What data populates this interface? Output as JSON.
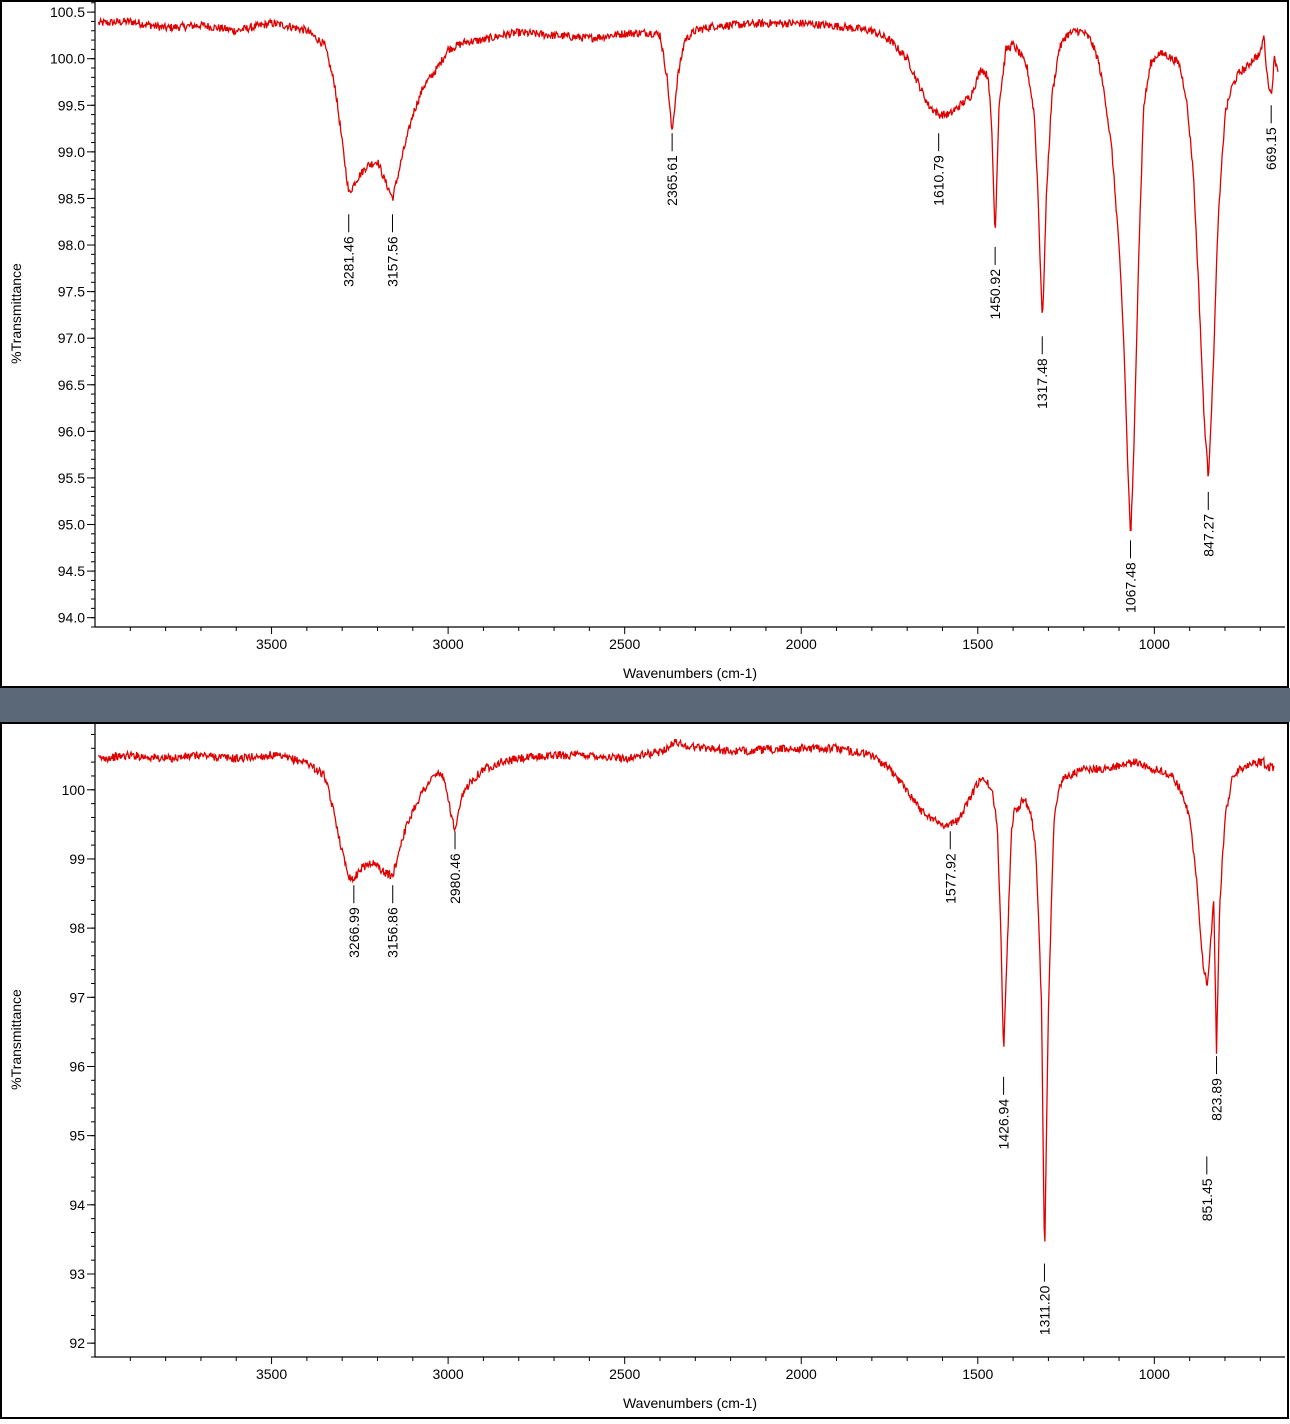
{
  "colors": {
    "trace": "#e00000",
    "separator": "#5a6878",
    "axis": "#000000"
  },
  "chart_data": [
    {
      "type": "line",
      "xlabel": "Wavenumbers (cm-1)",
      "ylabel": "%Transmittance",
      "xlim": [
        4000,
        630
      ],
      "ylim": [
        93.9,
        100.63
      ],
      "x_ticks": [
        3500,
        3000,
        2500,
        2000,
        1500,
        1000
      ],
      "y_ticks": [
        "94.0",
        "94.5",
        "95.0",
        "95.5",
        "96.0",
        "96.5",
        "97.0",
        "97.5",
        "98.0",
        "98.5",
        "99.0",
        "99.5",
        "100.0",
        "100.5"
      ],
      "x_minor_step": 100,
      "y_minor_step": 0.1,
      "series": [
        {
          "x": [
            3990,
            3900,
            3800,
            3700,
            3600,
            3500,
            3450,
            3400,
            3350,
            3320,
            3300,
            3281,
            3260,
            3230,
            3200,
            3180,
            3157,
            3130,
            3100,
            3070,
            3030,
            3000,
            2950,
            2900,
            2850,
            2800,
            2700,
            2600,
            2500,
            2430,
            2400,
            2380,
            2366,
            2350,
            2330,
            2300,
            2250,
            2200,
            2100,
            2000,
            1900,
            1800,
            1750,
            1700,
            1670,
            1640,
            1610,
            1580,
            1550,
            1520,
            1490,
            1470,
            1460,
            1451,
            1440,
            1420,
            1400,
            1380,
            1360,
            1340,
            1330,
            1317,
            1305,
            1290,
            1270,
            1250,
            1220,
            1200,
            1180,
            1160,
            1140,
            1120,
            1100,
            1085,
            1075,
            1067,
            1058,
            1045,
            1030,
            1010,
            990,
            970,
            950,
            930,
            910,
            890,
            875,
            860,
            847,
            835,
            820,
            800,
            780,
            760,
            740,
            720,
            700,
            690,
            680,
            669,
            660,
            650
          ],
          "y": [
            100.38,
            100.4,
            100.33,
            100.36,
            100.3,
            100.38,
            100.35,
            100.3,
            100.15,
            99.7,
            99.1,
            98.55,
            98.7,
            98.85,
            98.9,
            98.7,
            98.5,
            98.95,
            99.4,
            99.7,
            99.9,
            100.1,
            100.18,
            100.2,
            100.25,
            100.28,
            100.25,
            100.22,
            100.27,
            100.28,
            100.26,
            99.8,
            99.2,
            99.8,
            100.2,
            100.3,
            100.35,
            100.36,
            100.38,
            100.38,
            100.35,
            100.3,
            100.2,
            100.0,
            99.75,
            99.5,
            99.4,
            99.4,
            99.5,
            99.6,
            99.9,
            99.8,
            99.2,
            98.1,
            99.5,
            100.1,
            100.15,
            100.05,
            99.9,
            99.4,
            98.6,
            97.15,
            98.6,
            99.6,
            100.1,
            100.25,
            100.3,
            100.28,
            100.2,
            100.0,
            99.6,
            99.0,
            98.0,
            96.8,
            95.6,
            94.85,
            95.8,
            97.8,
            99.5,
            99.95,
            100.05,
            100.05,
            100.0,
            99.95,
            99.6,
            98.8,
            97.6,
            96.2,
            95.5,
            96.5,
            98.2,
            99.4,
            99.7,
            99.85,
            99.9,
            100.0,
            100.05,
            100.25,
            99.8,
            99.6,
            100.0,
            99.9
          ]
        }
      ],
      "peaks": [
        {
          "x": 3281.46,
          "y": 98.33,
          "label": "3281.46"
        },
        {
          "x": 3157.56,
          "y": 98.33,
          "label": "3157.56"
        },
        {
          "x": 2365.61,
          "y": 99.2,
          "label": "2365.61"
        },
        {
          "x": 1610.79,
          "y": 99.2,
          "label": "1610.79"
        },
        {
          "x": 1450.92,
          "y": 97.98,
          "label": "1450.92"
        },
        {
          "x": 1317.48,
          "y": 97.02,
          "label": "1317.48"
        },
        {
          "x": 1067.48,
          "y": 94.83,
          "label": "1067.48"
        },
        {
          "x": 847.27,
          "y": 95.35,
          "label": "847.27"
        },
        {
          "x": 669.15,
          "y": 99.5,
          "label": "669.15"
        }
      ]
    },
    {
      "type": "line",
      "xlabel": "Wavenumbers (cm-1)",
      "ylabel": "%Transmittance",
      "xlim": [
        4000,
        630
      ],
      "ylim": [
        91.8,
        100.98
      ],
      "x_ticks": [
        3500,
        3000,
        2500,
        2000,
        1500,
        1000
      ],
      "y_ticks": [
        "92",
        "93",
        "94",
        "95",
        "96",
        "97",
        "98",
        "99",
        "100"
      ],
      "x_minor_step": 100,
      "y_minor_step": 0.2,
      "series": [
        {
          "x": [
            3990,
            3900,
            3800,
            3700,
            3600,
            3500,
            3450,
            3400,
            3350,
            3320,
            3300,
            3280,
            3267,
            3250,
            3220,
            3200,
            3180,
            3157,
            3130,
            3100,
            3070,
            3040,
            3020,
            3000,
            2990,
            2980,
            2960,
            2940,
            2900,
            2850,
            2800,
            2700,
            2600,
            2500,
            2400,
            2350,
            2340,
            2300,
            2250,
            2200,
            2100,
            2000,
            1900,
            1800,
            1750,
            1700,
            1660,
            1620,
            1600,
            1578,
            1560,
            1540,
            1520,
            1500,
            1480,
            1460,
            1445,
            1435,
            1427,
            1418,
            1405,
            1395,
            1385,
            1375,
            1365,
            1350,
            1335,
            1320,
            1311,
            1300,
            1285,
            1270,
            1250,
            1220,
            1200,
            1150,
            1100,
            1050,
            1000,
            950,
            920,
            900,
            880,
            865,
            851,
            840,
            832,
            824,
            815,
            800,
            780,
            760,
            740,
            720,
            700,
            690,
            680,
            670,
            660
          ],
          "y": [
            100.45,
            100.5,
            100.45,
            100.5,
            100.45,
            100.5,
            100.45,
            100.4,
            100.2,
            99.6,
            99.1,
            98.75,
            98.7,
            98.85,
            98.95,
            98.9,
            98.8,
            98.75,
            99.3,
            99.7,
            100.0,
            100.2,
            100.25,
            99.9,
            99.6,
            99.4,
            99.9,
            100.1,
            100.3,
            100.4,
            100.45,
            100.5,
            100.5,
            100.45,
            100.55,
            100.7,
            100.65,
            100.62,
            100.6,
            100.55,
            100.58,
            100.6,
            100.6,
            100.5,
            100.3,
            100.0,
            99.7,
            99.55,
            99.5,
            99.5,
            99.55,
            99.7,
            99.9,
            100.1,
            100.15,
            100.0,
            99.5,
            98.0,
            96.2,
            97.5,
            99.4,
            99.8,
            99.7,
            99.85,
            99.85,
            99.7,
            99.1,
            97.0,
            93.2,
            96.8,
            99.5,
            100.05,
            100.2,
            100.25,
            100.3,
            100.3,
            100.35,
            100.4,
            100.3,
            100.2,
            99.95,
            99.6,
            98.7,
            97.6,
            97.15,
            97.8,
            98.4,
            96.2,
            98.3,
            99.6,
            100.15,
            100.3,
            100.35,
            100.4,
            100.4,
            100.4,
            100.3,
            100.35,
            100.3
          ]
        }
      ],
      "peaks": [
        {
          "x": 3266.99,
          "y": 98.62,
          "label": "3266.99"
        },
        {
          "x": 3156.86,
          "y": 98.62,
          "label": "3156.86"
        },
        {
          "x": 2980.46,
          "y": 99.4,
          "label": "2980.46"
        },
        {
          "x": 1577.92,
          "y": 99.4,
          "label": "1577.92"
        },
        {
          "x": 1426.94,
          "y": 95.85,
          "label": "1426.94"
        },
        {
          "x": 1311.2,
          "y": 93.15,
          "label": "1311.20"
        },
        {
          "x": 851.45,
          "y": 94.7,
          "label": "851.45"
        },
        {
          "x": 823.89,
          "y": 96.15,
          "label": "823.89"
        }
      ]
    }
  ]
}
